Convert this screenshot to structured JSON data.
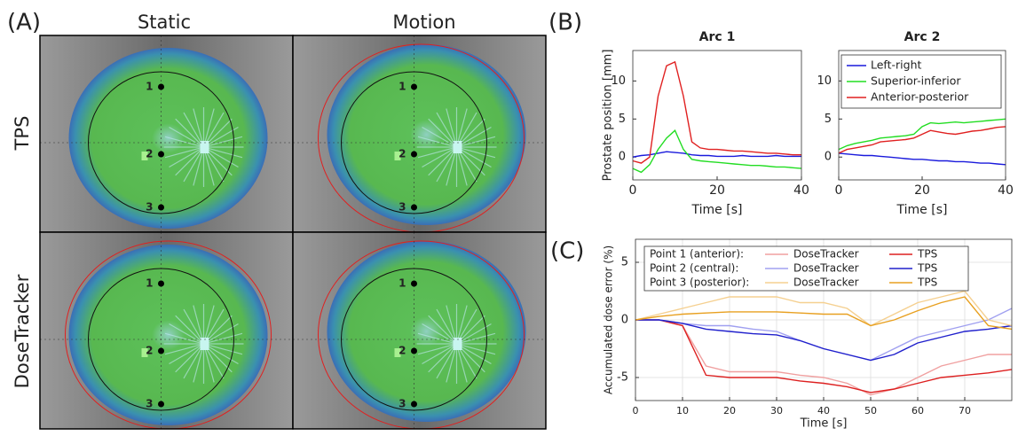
{
  "panel_a": {
    "label": "(A)",
    "columns": [
      "Static",
      "Motion"
    ],
    "rows": [
      "TPS",
      "DoseTracker"
    ],
    "points": [
      "1",
      "2",
      "3"
    ]
  },
  "chart_data": [
    {
      "type": "line",
      "panel_label": "(B)",
      "title": "Arc 1",
      "x_label": "Time [s]",
      "y_label": "Prostate position [mm]",
      "x": [
        0,
        2,
        4,
        6,
        8,
        10,
        12,
        14,
        16,
        18,
        20,
        22,
        24,
        26,
        28,
        30,
        32,
        34,
        36,
        38,
        40
      ],
      "xlim": [
        0,
        40
      ],
      "xticks": [
        0,
        20,
        40
      ],
      "ylim": [
        -3,
        14
      ],
      "yticks": [
        0,
        5,
        10
      ],
      "series": [
        {
          "color": "#1a1adc",
          "values": [
            0,
            0.2,
            0.3,
            0.5,
            0.7,
            0.6,
            0.5,
            0.3,
            0.2,
            0.2,
            0.1,
            0.1,
            0.1,
            0.2,
            0.1,
            0.1,
            0.1,
            0.2,
            0.1,
            0.1,
            0.1
          ]
        },
        {
          "color": "#22dd22",
          "values": [
            -1.5,
            -2,
            -1,
            1,
            2.5,
            3.5,
            1,
            -0.3,
            -0.5,
            -0.6,
            -0.7,
            -0.8,
            -0.9,
            -1,
            -1.1,
            -1.1,
            -1.2,
            -1.3,
            -1.3,
            -1.4,
            -1.5
          ]
        },
        {
          "color": "#e02020",
          "values": [
            -0.5,
            -0.8,
            0,
            8,
            12,
            12.5,
            8,
            2,
            1.2,
            1,
            1,
            0.9,
            0.8,
            0.8,
            0.7,
            0.6,
            0.5,
            0.5,
            0.4,
            0.3,
            0.3
          ]
        }
      ]
    },
    {
      "type": "line",
      "title": "Arc 2",
      "x_label": "Time [s]",
      "x": [
        0,
        2,
        4,
        6,
        8,
        10,
        12,
        14,
        16,
        18,
        20,
        22,
        24,
        26,
        28,
        30,
        32,
        34,
        36,
        38,
        40
      ],
      "xlim": [
        0,
        40
      ],
      "xticks": [
        0,
        20,
        40
      ],
      "ylim": [
        -3,
        14
      ],
      "yticks": [
        0,
        5,
        10
      ],
      "legend": "upper right",
      "series": [
        {
          "name": "Left-right",
          "color": "#1a1adc",
          "values": [
            0.5,
            0.4,
            0.3,
            0.2,
            0.2,
            0.1,
            0,
            -0.1,
            -0.2,
            -0.3,
            -0.3,
            -0.4,
            -0.5,
            -0.5,
            -0.6,
            -0.6,
            -0.7,
            -0.8,
            -0.8,
            -0.9,
            -1
          ]
        },
        {
          "name": "Superior-inferior",
          "color": "#22dd22",
          "values": [
            1,
            1.5,
            1.8,
            2,
            2.2,
            2.5,
            2.6,
            2.7,
            2.8,
            3,
            4,
            4.5,
            4.4,
            4.5,
            4.6,
            4.5,
            4.6,
            4.7,
            4.8,
            4.9,
            5
          ]
        },
        {
          "name": "Anterior-posterior",
          "color": "#e02020",
          "values": [
            0.5,
            1,
            1.2,
            1.4,
            1.6,
            2,
            2.1,
            2.2,
            2.3,
            2.5,
            3,
            3.5,
            3.3,
            3.1,
            3,
            3.2,
            3.4,
            3.5,
            3.7,
            3.9,
            4
          ]
        }
      ]
    },
    {
      "type": "line",
      "panel_label": "(C)",
      "x_label": "Time [s]",
      "y_label": "Accumulated dose error (%)",
      "x": [
        0,
        5,
        10,
        15,
        20,
        25,
        30,
        35,
        40,
        45,
        50,
        55,
        60,
        65,
        70,
        75,
        80
      ],
      "xlim": [
        0,
        80
      ],
      "xticks": [
        0,
        10,
        20,
        30,
        40,
        50,
        60,
        70
      ],
      "ylim": [
        -7,
        7
      ],
      "yticks": [
        -5,
        0,
        5
      ],
      "grid": true,
      "legend_rows": [
        "Point 1 (anterior):",
        "Point 2 (central):",
        "Point 3 (posterior):"
      ],
      "series": [
        {
          "name": "DoseTracker",
          "color": "#f0a0a0",
          "values": [
            0,
            0,
            -0.5,
            -4,
            -4.5,
            -4.5,
            -4.5,
            -4.8,
            -5,
            -5.5,
            -6.5,
            -6,
            -5,
            -4,
            -3.5,
            -3,
            -3
          ]
        },
        {
          "name": "TPS",
          "color": "#dd2020",
          "values": [
            0,
            0,
            -0.5,
            -4.8,
            -5,
            -5,
            -5,
            -5.3,
            -5.5,
            -5.8,
            -6.3,
            -6,
            -5.5,
            -5,
            -4.8,
            -4.6,
            -4.3
          ]
        },
        {
          "name": "DoseTracker",
          "color": "#a0a0f0",
          "values": [
            0,
            0,
            -0.3,
            -0.5,
            -0.5,
            -0.8,
            -1,
            -1.8,
            -2.5,
            -3,
            -3.5,
            -2.5,
            -1.5,
            -1,
            -0.5,
            0,
            1
          ]
        },
        {
          "name": "TPS",
          "color": "#2020cc",
          "values": [
            0,
            0,
            -0.3,
            -0.8,
            -1,
            -1.2,
            -1.3,
            -1.8,
            -2.5,
            -3,
            -3.5,
            -3,
            -2,
            -1.5,
            -1,
            -0.8,
            -0.5
          ]
        },
        {
          "name": "DoseTracker",
          "color": "#f5d090",
          "values": [
            0,
            0.5,
            1,
            1.5,
            2,
            2,
            2,
            1.5,
            1.5,
            1,
            -0.5,
            0.5,
            1.5,
            2,
            2.5,
            0,
            -0.5
          ]
        },
        {
          "name": "TPS",
          "color": "#e8a020",
          "values": [
            0,
            0.3,
            0.5,
            0.6,
            0.7,
            0.7,
            0.7,
            0.6,
            0.5,
            0.5,
            -0.5,
            0,
            0.8,
            1.5,
            2,
            -0.5,
            -0.8
          ]
        }
      ]
    }
  ]
}
